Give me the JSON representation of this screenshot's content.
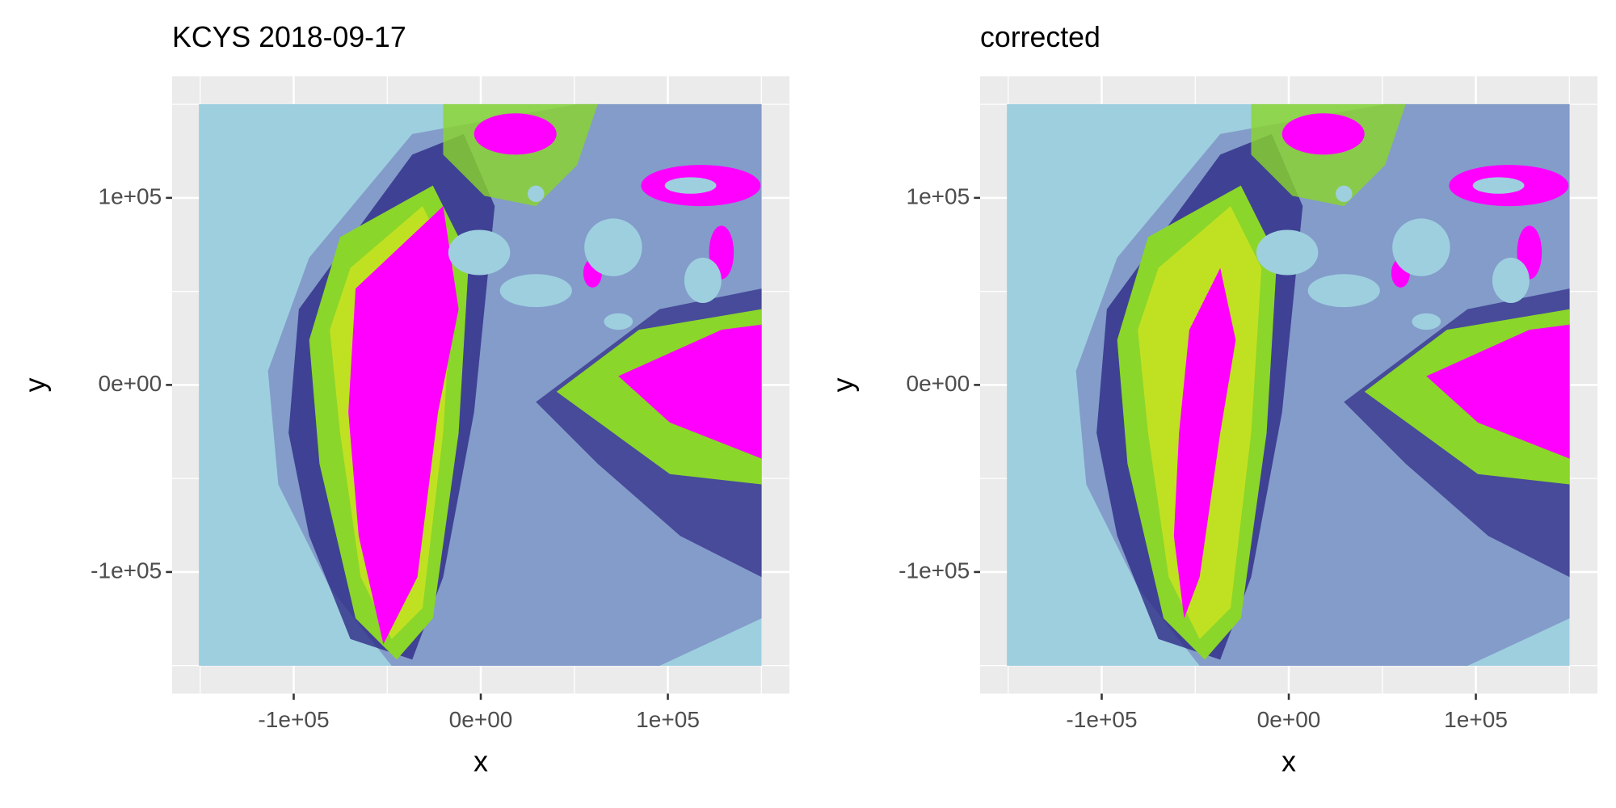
{
  "chart_data": [
    {
      "type": "raster",
      "title": "KCYS 2018-09-17",
      "xlabel": "x",
      "ylabel": "y",
      "xlim": [
        -165000,
        165000
      ],
      "ylim": [
        -165000,
        165000
      ],
      "xticks": [
        {
          "value": -100000,
          "label": "-1e+05"
        },
        {
          "value": 0,
          "label": "0e+00"
        },
        {
          "value": 100000,
          "label": "1e+05"
        }
      ],
      "yticks": [
        {
          "value": -100000,
          "label": "-1e+05"
        },
        {
          "value": 0,
          "label": "0e+00"
        },
        {
          "value": 100000,
          "label": "1e+05"
        }
      ],
      "minor_breaks": [
        -150000,
        -50000,
        50000,
        150000
      ],
      "grid": true,
      "variant": "raw"
    },
    {
      "type": "raster",
      "title": "corrected",
      "xlabel": "x",
      "ylabel": "y",
      "xlim": [
        -165000,
        165000
      ],
      "ylim": [
        -165000,
        165000
      ],
      "xticks": [
        {
          "value": -100000,
          "label": "-1e+05"
        },
        {
          "value": 0,
          "label": "0e+00"
        },
        {
          "value": 100000,
          "label": "1e+05"
        }
      ],
      "yticks": [
        {
          "value": -100000,
          "label": "-1e+05"
        },
        {
          "value": 0,
          "label": "0e+00"
        },
        {
          "value": 100000,
          "label": "1e+05"
        }
      ],
      "minor_breaks": [
        -150000,
        -50000,
        50000,
        150000
      ],
      "grid": true,
      "variant": "corrected"
    }
  ]
}
